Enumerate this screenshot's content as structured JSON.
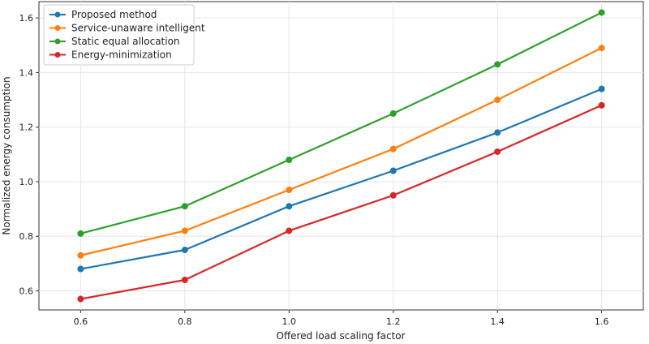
{
  "chart_data": {
    "type": "line",
    "title": "",
    "xlabel": "Offered load scaling factor",
    "ylabel": "Normalized energy consumption",
    "x": [
      0.6,
      0.8,
      1.0,
      1.2,
      1.4,
      1.6
    ],
    "x_tick_labels": [
      "0.6",
      "0.8",
      "1.0",
      "1.2",
      "1.4",
      "1.6"
    ],
    "y_ticks": [
      0.6,
      0.8,
      1.0,
      1.2,
      1.4,
      1.6
    ],
    "y_tick_labels": [
      "0.6",
      "0.8",
      "1.0",
      "1.2",
      "1.4",
      "1.6"
    ],
    "xlim": [
      0.52,
      1.68
    ],
    "ylim": [
      0.53,
      1.66
    ],
    "grid": true,
    "legend_position": "top-left",
    "series": [
      {
        "name": "Proposed method",
        "color": "#1f77b4",
        "values": [
          0.68,
          0.75,
          0.91,
          1.04,
          1.18,
          1.34
        ]
      },
      {
        "name": "Service-unaware intelligent",
        "color": "#ff7f0e",
        "values": [
          0.73,
          0.82,
          0.97,
          1.12,
          1.3,
          1.49
        ]
      },
      {
        "name": "Static equal allocation",
        "color": "#2ca02c",
        "values": [
          0.81,
          0.91,
          1.08,
          1.25,
          1.43,
          1.62
        ]
      },
      {
        "name": "Energy-minimization",
        "color": "#d62728",
        "values": [
          0.57,
          0.64,
          0.82,
          0.95,
          1.11,
          1.28
        ]
      }
    ]
  }
}
